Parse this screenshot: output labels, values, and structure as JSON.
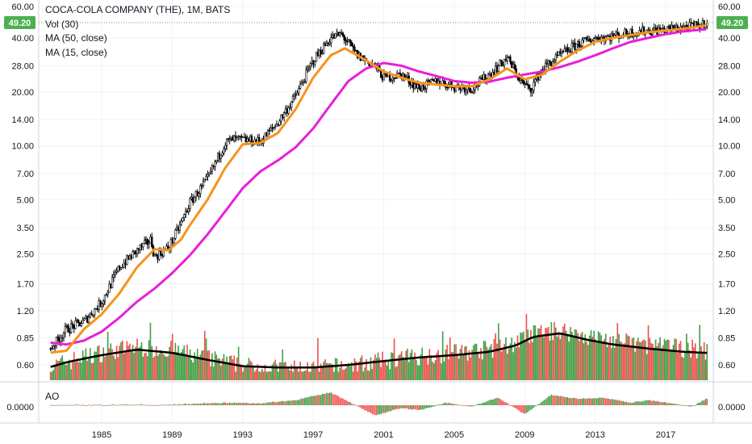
{
  "legend": {
    "title": "COCA-COLA COMPANY (THE), 1M, BATS",
    "line2": "Vol (30)",
    "line3": "MA (50, close)",
    "line4": "MA (15, close)"
  },
  "ao_label": "AO",
  "colors": {
    "up": "#43a047",
    "down": "#ef5350",
    "ma50": "#e91edb",
    "ma15": "#f7931a",
    "vol_ma": "#000000",
    "badge": "#4caf50"
  },
  "chart_data": {
    "type": "candlestick",
    "title": "COCA-COLA COMPANY (THE), 1M, BATS",
    "y_scale": "log",
    "y_ticks": [
      "60.00",
      "40.00",
      "28.00",
      "20.00",
      "14.00",
      "10.00",
      "7.00",
      "5.00",
      "3.50",
      "2.50",
      "1.70",
      "1.20",
      "0.85",
      "0.60"
    ],
    "x_ticks": [
      "1985",
      "1989",
      "1993",
      "1997",
      "2001",
      "2005",
      "2009",
      "2013",
      "2017"
    ],
    "last_price": "49.20",
    "ao_tick": "0.0000",
    "price_path": [
      [
        1982.0,
        0.72
      ],
      [
        1983.0,
        0.95
      ],
      [
        1984.0,
        1.05
      ],
      [
        1985.0,
        1.35
      ],
      [
        1986.0,
        2.1
      ],
      [
        1987.0,
        2.6
      ],
      [
        1987.8,
        3.0
      ],
      [
        1988.0,
        2.4
      ],
      [
        1988.8,
        2.7
      ],
      [
        1989.5,
        3.7
      ],
      [
        1990.0,
        4.8
      ],
      [
        1991.0,
        6.5
      ],
      [
        1992.0,
        10.4
      ],
      [
        1992.5,
        10.9
      ],
      [
        1994.0,
        10.6
      ],
      [
        1995.0,
        13.5
      ],
      [
        1996.0,
        19.0
      ],
      [
        1997.0,
        30.0
      ],
      [
        1998.0,
        40.0
      ],
      [
        1998.6,
        42.0
      ],
      [
        1999.5,
        32.0
      ],
      [
        2000.5,
        28.0
      ],
      [
        2001.0,
        24.0
      ],
      [
        2002.0,
        25.0
      ],
      [
        2003.0,
        21.0
      ],
      [
        2004.0,
        23.0
      ],
      [
        2005.0,
        21.5
      ],
      [
        2006.0,
        21.0
      ],
      [
        2007.0,
        25.0
      ],
      [
        2008.0,
        31.0
      ],
      [
        2008.8,
        23.0
      ],
      [
        2009.3,
        20.5
      ],
      [
        2010.0,
        27.0
      ],
      [
        2011.0,
        32.0
      ],
      [
        2012.0,
        37.0
      ],
      [
        2013.0,
        40.0
      ],
      [
        2014.0,
        41.0
      ],
      [
        2015.0,
        43.0
      ],
      [
        2016.0,
        44.0
      ],
      [
        2017.0,
        44.5
      ],
      [
        2018.0,
        46.0
      ],
      [
        2019.0,
        47.0
      ],
      [
        2019.3,
        49.2
      ]
    ],
    "ma15_path": [
      [
        1982.0,
        0.7
      ],
      [
        1983.0,
        0.72
      ],
      [
        1984.0,
        0.95
      ],
      [
        1985.0,
        1.15
      ],
      [
        1986.0,
        1.5
      ],
      [
        1987.0,
        2.1
      ],
      [
        1988.0,
        2.65
      ],
      [
        1988.8,
        2.62
      ],
      [
        1989.5,
        3.0
      ],
      [
        1990.0,
        3.6
      ],
      [
        1991.0,
        5.0
      ],
      [
        1992.0,
        7.5
      ],
      [
        1993.0,
        10.2
      ],
      [
        1994.0,
        10.4
      ],
      [
        1995.0,
        11.8
      ],
      [
        1996.0,
        16.0
      ],
      [
        1997.0,
        24.0
      ],
      [
        1998.0,
        32.0
      ],
      [
        1998.8,
        35.0
      ],
      [
        2000.0,
        30.0
      ],
      [
        2001.0,
        26.0
      ],
      [
        2002.0,
        24.0
      ],
      [
        2003.0,
        22.5
      ],
      [
        2004.0,
        22.0
      ],
      [
        2005.0,
        21.5
      ],
      [
        2006.0,
        21.5
      ],
      [
        2007.0,
        23.5
      ],
      [
        2008.0,
        27.0
      ],
      [
        2009.0,
        23.5
      ],
      [
        2010.0,
        25.0
      ],
      [
        2011.0,
        29.5
      ],
      [
        2012.0,
        34.0
      ],
      [
        2013.0,
        38.0
      ],
      [
        2014.0,
        40.0
      ],
      [
        2015.0,
        41.5
      ],
      [
        2016.0,
        43.0
      ],
      [
        2017.0,
        44.0
      ],
      [
        2018.0,
        45.0
      ],
      [
        2019.3,
        47.0
      ]
    ],
    "ma50_path": [
      [
        1982.0,
        0.8
      ],
      [
        1983.0,
        0.78
      ],
      [
        1984.0,
        0.82
      ],
      [
        1985.0,
        0.92
      ],
      [
        1986.0,
        1.1
      ],
      [
        1987.0,
        1.35
      ],
      [
        1988.0,
        1.6
      ],
      [
        1989.0,
        1.95
      ],
      [
        1990.0,
        2.45
      ],
      [
        1991.0,
        3.2
      ],
      [
        1992.0,
        4.3
      ],
      [
        1993.0,
        5.8
      ],
      [
        1994.0,
        7.2
      ],
      [
        1995.0,
        8.3
      ],
      [
        1996.0,
        9.8
      ],
      [
        1997.0,
        12.5
      ],
      [
        1998.0,
        17.0
      ],
      [
        1999.0,
        23.0
      ],
      [
        2000.0,
        27.0
      ],
      [
        2001.0,
        29.0
      ],
      [
        2002.0,
        28.0
      ],
      [
        2003.0,
        26.0
      ],
      [
        2004.0,
        24.5
      ],
      [
        2005.0,
        23.0
      ],
      [
        2006.0,
        22.5
      ],
      [
        2007.0,
        22.8
      ],
      [
        2008.0,
        24.0
      ],
      [
        2009.0,
        25.0
      ],
      [
        2010.0,
        26.0
      ],
      [
        2011.0,
        27.5
      ],
      [
        2012.0,
        29.5
      ],
      [
        2013.0,
        32.0
      ],
      [
        2014.0,
        35.0
      ],
      [
        2015.0,
        38.0
      ],
      [
        2016.0,
        40.0
      ],
      [
        2017.0,
        42.0
      ],
      [
        2018.0,
        43.5
      ],
      [
        2019.3,
        44.8
      ]
    ],
    "volume_path": [
      [
        1982.0,
        0.56
      ],
      [
        1983.0,
        0.61
      ],
      [
        1985.0,
        0.69
      ],
      [
        1987.0,
        0.74
      ],
      [
        1989.0,
        0.71
      ],
      [
        1991.0,
        0.64
      ],
      [
        1993.0,
        0.58
      ],
      [
        1995.0,
        0.56
      ],
      [
        1997.0,
        0.56
      ],
      [
        1999.0,
        0.58
      ],
      [
        2001.0,
        0.62
      ],
      [
        2003.0,
        0.66
      ],
      [
        2005.0,
        0.69
      ],
      [
        2007.0,
        0.72
      ],
      [
        2008.5,
        0.78
      ],
      [
        2009.5,
        0.88
      ],
      [
        2011.0,
        0.92
      ],
      [
        2012.5,
        0.85
      ],
      [
        2014.0,
        0.8
      ],
      [
        2016.0,
        0.76
      ],
      [
        2018.0,
        0.73
      ],
      [
        2019.3,
        0.71
      ]
    ],
    "vol_ma_path": [
      [
        1982.0,
        0.58
      ],
      [
        1983.0,
        0.62
      ],
      [
        1985.0,
        0.68
      ],
      [
        1987.0,
        0.73
      ],
      [
        1989.0,
        0.7
      ],
      [
        1991.0,
        0.64
      ],
      [
        1993.0,
        0.59
      ],
      [
        1995.0,
        0.58
      ],
      [
        1997.0,
        0.58
      ],
      [
        1999.0,
        0.6
      ],
      [
        2001.0,
        0.63
      ],
      [
        2003.0,
        0.66
      ],
      [
        2005.0,
        0.68
      ],
      [
        2007.0,
        0.71
      ],
      [
        2008.5,
        0.77
      ],
      [
        2009.5,
        0.86
      ],
      [
        2011.0,
        0.9
      ],
      [
        2012.5,
        0.83
      ],
      [
        2014.0,
        0.78
      ],
      [
        2016.0,
        0.74
      ],
      [
        2018.0,
        0.71
      ],
      [
        2019.3,
        0.7
      ]
    ],
    "ao_path": [
      [
        1982.0,
        0.0
      ],
      [
        1984.0,
        0.02
      ],
      [
        1987.0,
        0.05
      ],
      [
        1988.0,
        0.0
      ],
      [
        1990.0,
        0.1
      ],
      [
        1992.0,
        0.2
      ],
      [
        1994.0,
        0.15
      ],
      [
        1996.0,
        0.4
      ],
      [
        1998.0,
        1.0
      ],
      [
        1999.0,
        0.3
      ],
      [
        2000.5,
        -0.8
      ],
      [
        2002.0,
        -0.2
      ],
      [
        2003.0,
        -0.4
      ],
      [
        2004.5,
        0.2
      ],
      [
        2006.0,
        -0.1
      ],
      [
        2007.5,
        0.6
      ],
      [
        2009.0,
        -0.7
      ],
      [
        2010.5,
        0.8
      ],
      [
        2012.0,
        0.5
      ],
      [
        2013.5,
        0.6
      ],
      [
        2015.0,
        0.2
      ],
      [
        2016.0,
        0.4
      ],
      [
        2017.5,
        0.1
      ],
      [
        2018.5,
        -0.1
      ],
      [
        2019.3,
        0.5
      ]
    ]
  }
}
